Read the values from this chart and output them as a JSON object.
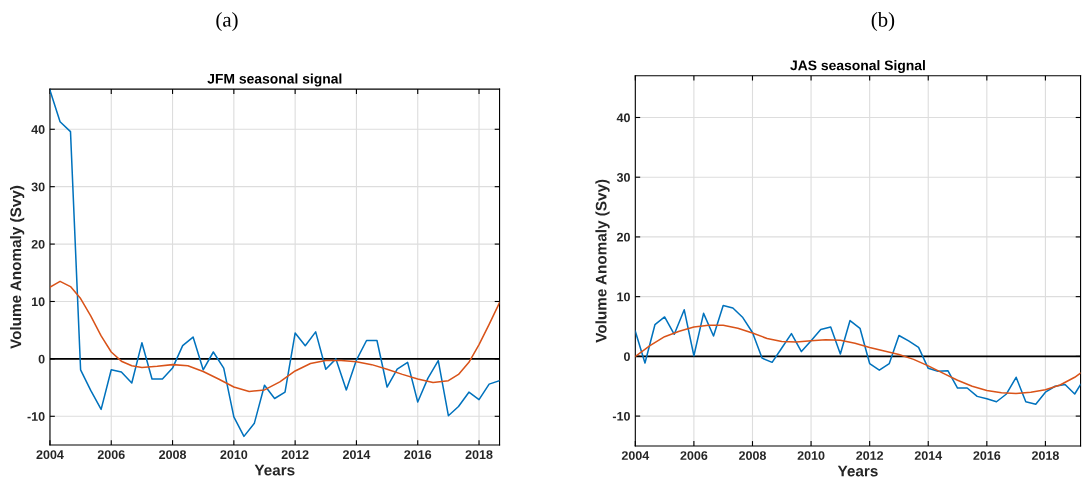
{
  "chart_data": [
    {
      "type": "line",
      "title": "JFM seasonal signal",
      "xlabel": "Years",
      "ylabel": "Volume Anomaly (Svy)",
      "annotations": [
        "(a)"
      ],
      "xlim": [
        2004,
        2018.67
      ],
      "xticks": [
        2004,
        2006,
        2008,
        2010,
        2012,
        2014,
        2016,
        2018
      ],
      "ylim": [
        -15,
        47
      ],
      "yticks": [
        -10,
        0,
        10,
        20,
        30,
        40
      ],
      "grid": true,
      "ref_lines": [
        {
          "axis": "y",
          "value": 0,
          "color": "#000000"
        }
      ],
      "series": [
        {
          "color": "#0072bd",
          "x": [
            2004,
            2004.33,
            2004.67,
            2005,
            2005.33,
            2005.67,
            2006,
            2006.33,
            2006.67,
            2007,
            2007.33,
            2007.67,
            2008,
            2008.33,
            2008.67,
            2009,
            2009.33,
            2009.67,
            2010,
            2010.33,
            2010.67,
            2011,
            2011.33,
            2011.67,
            2012,
            2012.33,
            2012.67,
            2013,
            2013.33,
            2013.67,
            2014,
            2014.33,
            2014.67,
            2015,
            2015.33,
            2015.67,
            2016,
            2016.33,
            2016.67,
            2017,
            2017.33,
            2017.67,
            2018,
            2018.33,
            2018.67
          ],
          "values": [
            46.8,
            41.3,
            39.6,
            -1.9,
            -5.5,
            -8.8,
            -1.9,
            -2.3,
            -4.2,
            2.8,
            -3.5,
            -3.5,
            -1.6,
            2.3,
            3.8,
            -1.9,
            1.2,
            -1.6,
            -10.1,
            -13.5,
            -11.2,
            -4.6,
            -6.9,
            -5.8,
            4.5,
            2.3,
            4.7,
            -1.8,
            0,
            -5.4,
            -0.2,
            3.2,
            3.2,
            -4.9,
            -1.8,
            -0.6,
            -7.5,
            -3.4,
            -0.3,
            -9.9,
            -8.3,
            -5.8,
            -7.1,
            -4.4,
            -3.8
          ]
        },
        {
          "color": "#d95319",
          "x": [
            2004,
            2004.33,
            2004.67,
            2005,
            2005.33,
            2005.67,
            2006,
            2006.33,
            2006.67,
            2007,
            2007.5,
            2008,
            2008.5,
            2009,
            2009.5,
            2010,
            2010.5,
            2011,
            2011.5,
            2012,
            2012.5,
            2013,
            2013.5,
            2014,
            2014.5,
            2015,
            2015.5,
            2016,
            2016.5,
            2017,
            2017.33,
            2017.67,
            2018,
            2018.33,
            2018.67
          ],
          "values": [
            12.5,
            13.5,
            12.6,
            10.5,
            7.5,
            4.0,
            1.2,
            -0.4,
            -1.2,
            -1.5,
            -1.3,
            -1.0,
            -1.2,
            -2.2,
            -3.5,
            -4.9,
            -5.7,
            -5.4,
            -4.0,
            -2.1,
            -0.8,
            -0.3,
            -0.3,
            -0.5,
            -1.0,
            -1.8,
            -2.7,
            -3.5,
            -4.1,
            -3.8,
            -2.7,
            -0.6,
            2.5,
            6.0,
            9.8
          ]
        }
      ]
    },
    {
      "type": "line",
      "title": "JAS seasonal Signal",
      "xlabel": "Years",
      "ylabel": "Volume Anomaly (Svy)",
      "annotations": [
        "(b)"
      ],
      "xlim": [
        2004,
        2019.2
      ],
      "xticks": [
        2004,
        2006,
        2008,
        2010,
        2012,
        2014,
        2016,
        2018
      ],
      "ylim": [
        -15,
        47
      ],
      "yticks": [
        -10,
        0,
        10,
        20,
        30,
        40
      ],
      "grid": true,
      "ref_lines": [
        {
          "axis": "y",
          "value": 0,
          "color": "#000000"
        }
      ],
      "series": [
        {
          "color": "#0072bd",
          "x": [
            2004,
            2004.33,
            2004.67,
            2005,
            2005.33,
            2005.67,
            2006,
            2006.33,
            2006.67,
            2007,
            2007.33,
            2007.67,
            2008,
            2008.33,
            2008.67,
            2009,
            2009.33,
            2009.67,
            2010,
            2010.33,
            2010.67,
            2011,
            2011.33,
            2011.67,
            2012,
            2012.33,
            2012.67,
            2013,
            2013.33,
            2013.67,
            2014,
            2014.33,
            2014.67,
            2015,
            2015.33,
            2015.67,
            2016,
            2016.33,
            2016.67,
            2017,
            2017.33,
            2017.67,
            2018,
            2018.33,
            2018.67,
            2019,
            2019.2
          ],
          "values": [
            4.2,
            -1.1,
            5.3,
            6.6,
            3.7,
            7.8,
            0.1,
            7.2,
            3.4,
            8.5,
            8.1,
            6.5,
            4.0,
            -0.3,
            -1.0,
            1.4,
            3.8,
            0.8,
            2.6,
            4.5,
            4.9,
            0.4,
            6.0,
            4.7,
            -1.2,
            -2.3,
            -1.2,
            3.5,
            2.6,
            1.5,
            -2.0,
            -2.5,
            -2.4,
            -5.3,
            -5.3,
            -6.7,
            -7.1,
            -7.6,
            -6.3,
            -3.5,
            -7.6,
            -8.0,
            -6.0,
            -5.0,
            -4.7,
            -6.3,
            -4.7
          ]
        },
        {
          "color": "#d95319",
          "x": [
            2004,
            2004.5,
            2005,
            2005.5,
            2006,
            2006.5,
            2007,
            2007.5,
            2008,
            2008.5,
            2009,
            2009.5,
            2010,
            2010.5,
            2011,
            2011.5,
            2012,
            2012.5,
            2013,
            2013.5,
            2014,
            2014.5,
            2015,
            2015.5,
            2016,
            2016.5,
            2017,
            2017.5,
            2018,
            2018.5,
            2019,
            2019.2
          ],
          "values": [
            0,
            1.8,
            3.3,
            4.2,
            4.9,
            5.2,
            5.2,
            4.7,
            3.9,
            3.0,
            2.5,
            2.4,
            2.6,
            2.8,
            2.7,
            2.2,
            1.5,
            0.9,
            0.3,
            -0.5,
            -1.6,
            -2.8,
            -4.0,
            -5.0,
            -5.7,
            -6.1,
            -6.2,
            -6.0,
            -5.6,
            -4.8,
            -3.5,
            -2.8
          ]
        }
      ]
    }
  ]
}
